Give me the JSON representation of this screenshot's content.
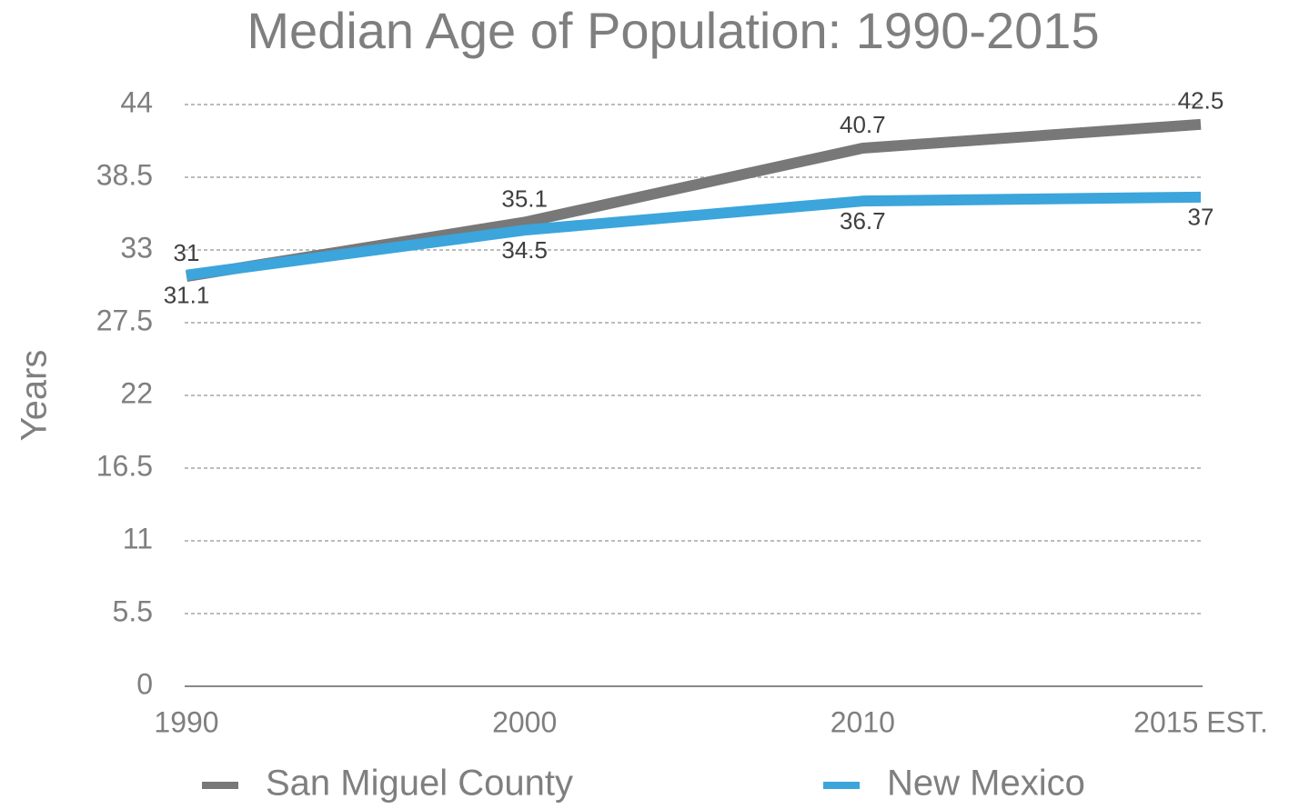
{
  "chart_data": {
    "type": "line",
    "title": "Median Age of Population: 1990-2015",
    "y_label": "Years",
    "categories": [
      "1990",
      "2000",
      "2010",
      "2015 EST."
    ],
    "series": [
      {
        "name": "San Miguel County",
        "color": "#787878",
        "values": [
          31,
          35.1,
          40.7,
          42.5
        ]
      },
      {
        "name": "New Mexico",
        "color": "#3ba5dc",
        "values": [
          31.1,
          34.5,
          36.7,
          37
        ]
      }
    ],
    "ylim": [
      0,
      44
    ],
    "yticks": [
      0,
      5.5,
      11,
      16.5,
      22,
      27.5,
      33,
      38.5,
      44
    ],
    "grid": true,
    "legend": "bottom"
  }
}
